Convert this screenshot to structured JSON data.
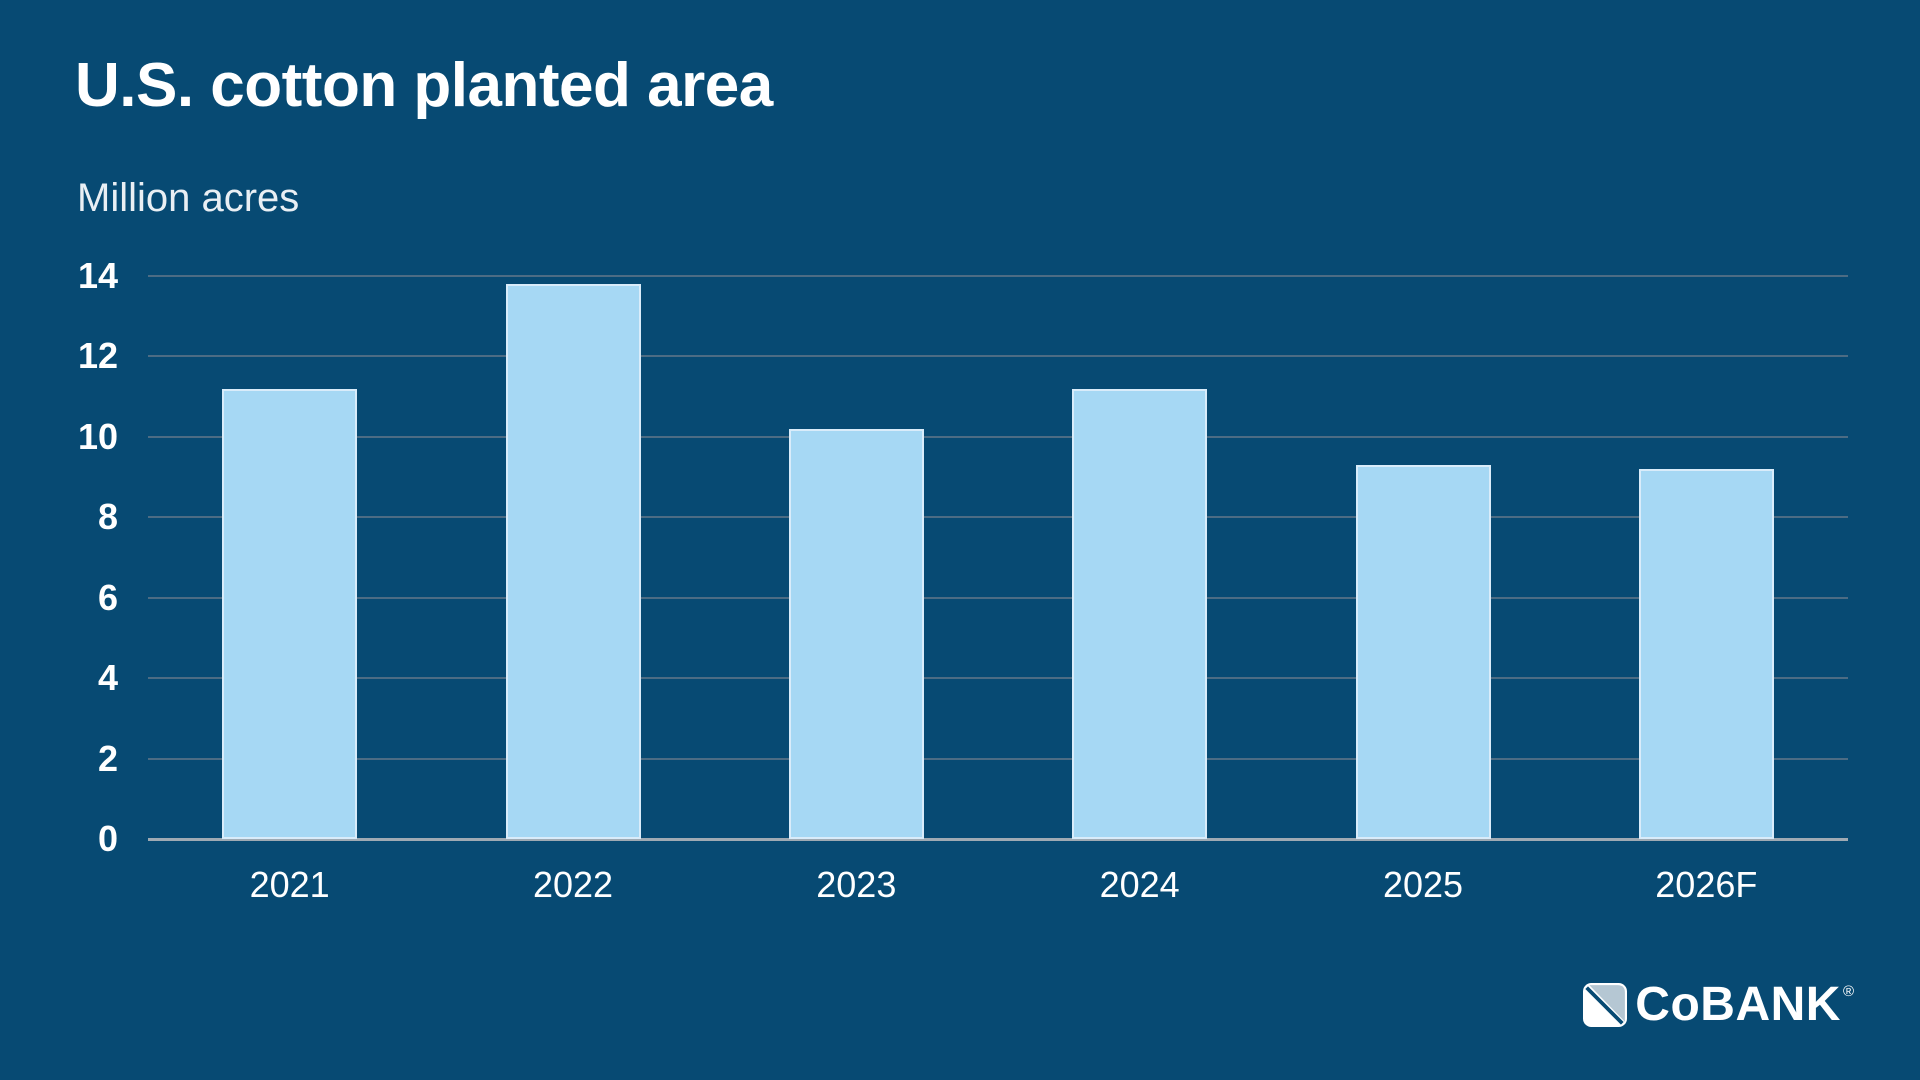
{
  "chart": {
    "title": "U.S. cotton planted area",
    "subtitle": "Million acres"
  },
  "chart_data": {
    "type": "bar",
    "categories": [
      "2021",
      "2022",
      "2023",
      "2024",
      "2025",
      "2026F"
    ],
    "values": [
      11.2,
      13.8,
      10.2,
      11.2,
      9.3,
      9.2
    ],
    "title": "U.S. cotton planted area",
    "xlabel": "",
    "ylabel": "Million acres",
    "ylim": [
      0,
      14
    ],
    "yticks": [
      0,
      2,
      4,
      6,
      8,
      10,
      12,
      14
    ],
    "grid": true,
    "legend": false
  },
  "logo": {
    "text": "CoBANK",
    "registered": "®"
  },
  "colors": {
    "background": "#074A73",
    "bar_fill": "#A6D8F4",
    "bar_border": "#D9ECFA",
    "gridline": "#4C6C84",
    "axis_baseline": "#9FAAB3",
    "text": "#FFFFFF",
    "logo_mark_gray": "#B5C7D3",
    "logo_mark_white": "#FFFFFF"
  }
}
